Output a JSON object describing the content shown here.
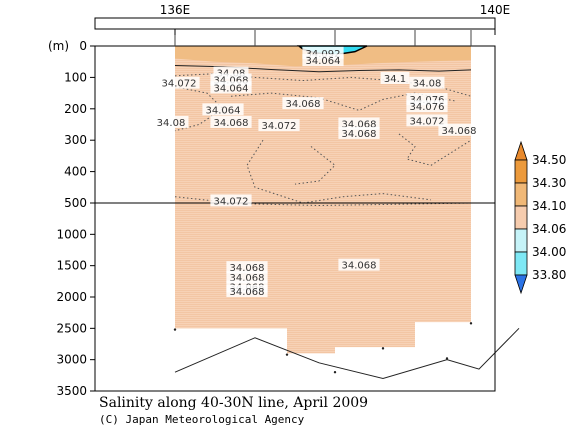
{
  "chart_data": {
    "type": "heatmap",
    "title": "Salinity along 40-30N line, April 2009",
    "credit": "(C) Japan Meteorological Agency",
    "x_ticks": [
      {
        "lon": 136,
        "label": "136E"
      },
      {
        "lon": 140,
        "label": "140E"
      }
    ],
    "y_unit_label": "(m)",
    "y_upper": {
      "range": [
        0,
        500
      ],
      "ticks": [
        0,
        100,
        200,
        300,
        400,
        500
      ]
    },
    "y_lower": {
      "range": [
        500,
        3500
      ],
      "ticks": [
        1000,
        1500,
        2000,
        2500,
        3000,
        3500
      ]
    },
    "colorbar": {
      "levels": [
        "33.80",
        "34.00",
        "34.06",
        "34.10",
        "34.30",
        "34.50"
      ],
      "colors": [
        "#33d8f0",
        "#7ee8f5",
        "#c6f3f8",
        "#f6ccae",
        "#f0b877",
        "#ec9a3c"
      ],
      "extend_low_color": "#2b73e6",
      "extend_high_color": "#e8892c"
    },
    "contour_labels": [
      {
        "text": "34.08",
        "lon": 136.7,
        "depth": 88
      },
      {
        "text": "34.068",
        "lon": 136.7,
        "depth": 110
      },
      {
        "text": "34.064",
        "lon": 136.7,
        "depth": 135
      },
      {
        "text": "34.072",
        "lon": 136.05,
        "depth": 120
      },
      {
        "text": "34.064",
        "lon": 136.6,
        "depth": 205
      },
      {
        "text": "34.068",
        "lon": 136.7,
        "depth": 245
      },
      {
        "text": "34.08",
        "lon": 135.95,
        "depth": 245
      },
      {
        "text": "34.072",
        "lon": 137.3,
        "depth": 255
      },
      {
        "text": "34.068",
        "lon": 137.6,
        "depth": 185
      },
      {
        "text": "34.068",
        "lon": 138.3,
        "depth": 250
      },
      {
        "text": "34.068",
        "lon": 138.3,
        "depth": 280
      },
      {
        "text": "34.1",
        "lon": 138.75,
        "depth": 105
      },
      {
        "text": "34.08",
        "lon": 139.15,
        "depth": 120
      },
      {
        "text": "34.076",
        "lon": 139.15,
        "depth": 172
      },
      {
        "text": "34.076",
        "lon": 139.15,
        "depth": 195
      },
      {
        "text": "34.072",
        "lon": 139.15,
        "depth": 240
      },
      {
        "text": "34.068",
        "lon": 139.55,
        "depth": 270
      },
      {
        "text": "34.092",
        "lon": 137.85,
        "depth": 25
      },
      {
        "text": "34.064",
        "lon": 137.85,
        "depth": 48
      },
      {
        "text": "34.072",
        "lon": 136.7,
        "depth": 495
      },
      {
        "text": "34.068",
        "lon": 136.9,
        "depth": 1540
      },
      {
        "text": "34.068",
        "lon": 136.9,
        "depth": 1700
      },
      {
        "text": "34.068",
        "lon": 136.9,
        "depth": 1850
      },
      {
        "text": "34.068",
        "lon": 136.9,
        "depth": 1920
      },
      {
        "text": "34.068",
        "lon": 138.3,
        "depth": 1500
      }
    ]
  }
}
